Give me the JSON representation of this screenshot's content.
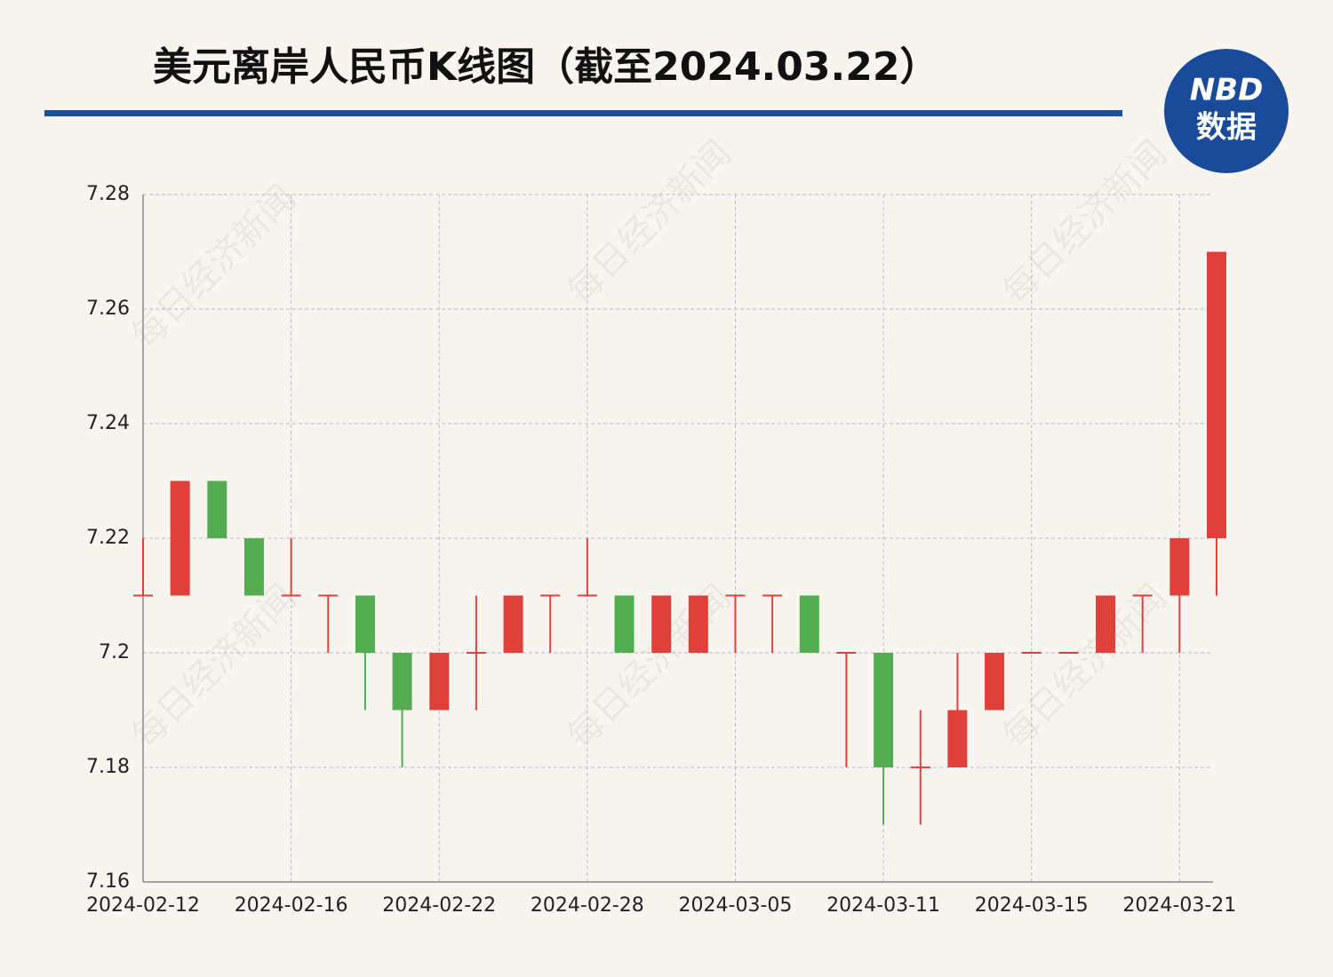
{
  "chart_data": {
    "type": "candlestick",
    "title": "美元离岸人民币K线图（截至2024.03.22）",
    "logo": [
      "NBD",
      "数据"
    ],
    "watermark": "每日经济新闻",
    "categories": [
      "2024-02-12",
      null,
      null,
      null,
      "2024-02-16",
      null,
      null,
      null,
      "2024-02-22",
      null,
      null,
      null,
      "2024-02-28",
      null,
      null,
      null,
      "2024-03-05",
      null,
      null,
      null,
      "2024-03-11",
      null,
      null,
      null,
      "2024-03-15",
      null,
      null,
      null,
      "2024-03-21",
      null
    ],
    "open": [
      7.21,
      7.21,
      7.23,
      7.22,
      7.21,
      7.21,
      7.21,
      7.2,
      7.19,
      7.2,
      7.2,
      7.21,
      7.21,
      7.21,
      7.2,
      7.2,
      7.21,
      7.21,
      7.21,
      7.2,
      7.2,
      7.18,
      7.18,
      7.19,
      7.2,
      7.2,
      7.2,
      7.21,
      7.21,
      7.22
    ],
    "high": [
      7.22,
      7.23,
      7.23,
      7.22,
      7.22,
      7.21,
      7.21,
      7.2,
      7.2,
      7.21,
      7.21,
      7.21,
      7.22,
      7.21,
      7.21,
      7.21,
      7.21,
      7.21,
      7.21,
      7.2,
      7.2,
      7.19,
      7.2,
      7.2,
      7.2,
      7.2,
      7.21,
      7.21,
      7.22,
      7.27
    ],
    "low": [
      7.21,
      7.21,
      7.22,
      7.21,
      7.21,
      7.2,
      7.19,
      7.18,
      7.19,
      7.19,
      7.2,
      7.2,
      7.21,
      7.2,
      7.2,
      7.2,
      7.2,
      7.2,
      7.2,
      7.18,
      7.17,
      7.17,
      7.18,
      7.19,
      7.2,
      7.2,
      7.2,
      7.2,
      7.2,
      7.21
    ],
    "close": [
      7.21,
      7.23,
      7.22,
      7.21,
      7.21,
      7.21,
      7.2,
      7.19,
      7.2,
      7.2,
      7.21,
      7.21,
      7.21,
      7.2,
      7.21,
      7.21,
      7.21,
      7.21,
      7.2,
      7.2,
      7.18,
      7.18,
      7.19,
      7.2,
      7.2,
      7.2,
      7.21,
      7.21,
      7.22,
      7.27
    ],
    "up_color": "#e0403a",
    "down_color": "#53ad50",
    "ylim": [
      7.16,
      7.28
    ],
    "yticks": [
      7.16,
      7.18,
      7.2,
      7.22,
      7.24,
      7.26,
      7.28
    ],
    "grid": true
  }
}
